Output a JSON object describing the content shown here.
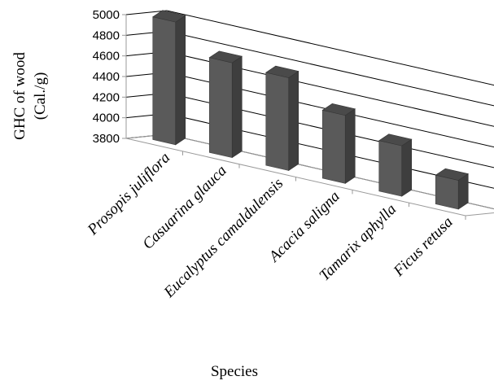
{
  "chart_data": {
    "type": "bar",
    "style": "3d-column",
    "categories": [
      "Prosopis juliflora",
      "Casuarina glauca",
      "Eucalyptus camaldulensis",
      "Acacia saligna",
      "Tamarix aphylla",
      "Ficus retusa"
    ],
    "values": [
      4990,
      4720,
      4700,
      4460,
      4290,
      4080
    ],
    "ylabel": "GHC of wood (Cal./g)",
    "ylabel_lines": [
      "GHC of wood",
      "(Cal./g)"
    ],
    "xlabel": "Species",
    "ylim": [
      3800,
      5000
    ],
    "yticks": [
      "3800",
      "4000",
      "4200",
      "4400",
      "4600",
      "4800",
      "5000"
    ],
    "grid": true,
    "legend": "none",
    "bar_color": "#5a5a5a"
  }
}
